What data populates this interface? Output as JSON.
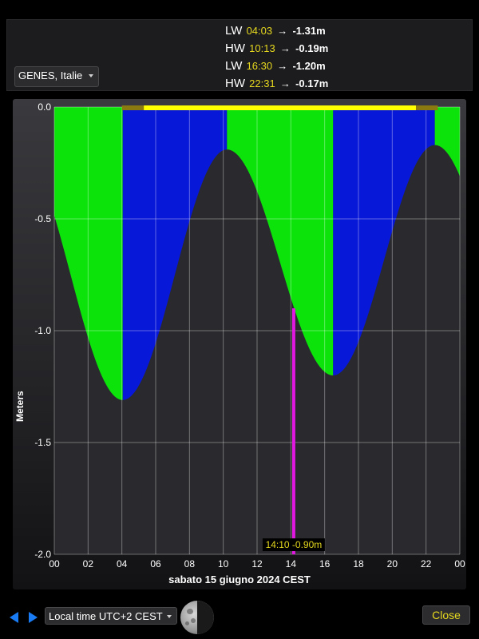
{
  "header": {
    "location": "GENES, Italie",
    "tides": [
      {
        "type": "LW",
        "time": "04:03",
        "arrow": "→",
        "height": "-1.31m"
      },
      {
        "type": "HW",
        "time": "10:13",
        "arrow": "→",
        "height": "-0.19m"
      },
      {
        "type": "LW",
        "time": "16:30",
        "arrow": "→",
        "height": "-1.20m"
      },
      {
        "type": "HW",
        "time": "22:31",
        "arrow": "→",
        "height": "-0.17m"
      }
    ]
  },
  "chart_data": {
    "type": "area",
    "ylabel": "Meters",
    "xlabel": "sabato 15 giugno 2024 CEST",
    "xlim": [
      0,
      24
    ],
    "ylim": [
      -2.0,
      0.0
    ],
    "y_ticks": [
      "0.0",
      "-0.5",
      "-1.0",
      "-1.5",
      "-2.0"
    ],
    "x_ticks": [
      "00",
      "02",
      "04",
      "06",
      "08",
      "10",
      "12",
      "14",
      "16",
      "18",
      "20",
      "22",
      "00"
    ],
    "grid": true,
    "extrema": [
      {
        "t": 4.05,
        "h": -1.31,
        "type": "LW"
      },
      {
        "t": 10.22,
        "h": -0.19,
        "type": "HW"
      },
      {
        "t": 16.5,
        "h": -1.2,
        "type": "LW"
      },
      {
        "t": 22.52,
        "h": -0.17,
        "type": "HW"
      }
    ],
    "rising_color": "#0818d8",
    "falling_color": "#0be30b",
    "curve_color": "#2a2a2e",
    "daylight_bar": {
      "twilight_start": 4.0,
      "sunrise": 5.3,
      "sunset": 21.4,
      "twilight_end": 22.7,
      "day_color": "#ffff00",
      "twilight_color": "#8a7a10"
    },
    "cursor": {
      "t": 14.17,
      "h": -0.9,
      "label": "14:10 -0.90m",
      "color": "#e018e0"
    }
  },
  "footer": {
    "timezone": "Local time UTC+2 CEST",
    "close_label": "Close",
    "accent": "#1a7cf5"
  }
}
